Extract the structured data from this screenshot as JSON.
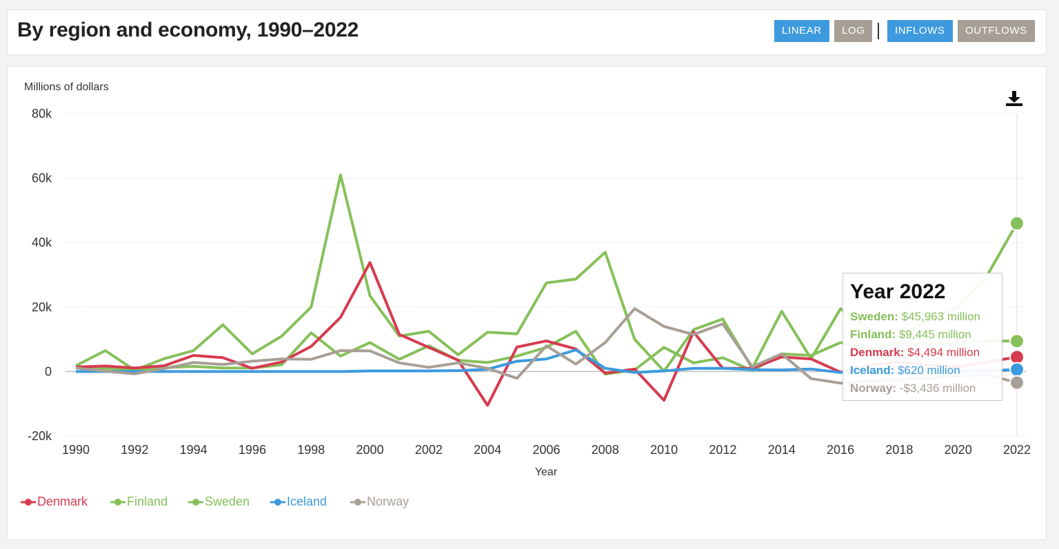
{
  "header": {
    "title": "By region and economy, 1990–2022",
    "buttons": {
      "linear": "LINEAR",
      "log": "LOG",
      "inflows": "INFLOWS",
      "outflows": "OUTFLOWS"
    }
  },
  "colors": {
    "denmark": "#d63b4f",
    "finland": "#86c05a",
    "sweden": "#86c05a",
    "iceland": "#3d9ade",
    "norway": "#a79f96"
  },
  "chart_data": {
    "type": "line",
    "ylabel": "Millions of dollars",
    "xlabel": "Year",
    "ylim": [
      -20000,
      80000
    ],
    "y_ticks": [
      -20000,
      0,
      20000,
      40000,
      60000,
      80000
    ],
    "y_tick_labels": [
      "-20k",
      "0",
      "20k",
      "40k",
      "60k",
      "80k"
    ],
    "x_ticks": [
      1990,
      1992,
      1994,
      1996,
      1998,
      2000,
      2002,
      2004,
      2006,
      2008,
      2010,
      2012,
      2014,
      2016,
      2018,
      2020,
      2022
    ],
    "x_tick_labels": [
      "1990",
      "1992",
      "1994",
      "1996",
      "1998",
      "2000",
      "2002",
      "2004",
      "2006",
      "2008",
      "2010",
      "2012",
      "2014",
      "2016",
      "2018",
      "2020",
      "2022"
    ],
    "grid": true,
    "legend_position": "bottom-left",
    "x": [
      1990,
      1991,
      1992,
      1993,
      1994,
      1995,
      1996,
      1997,
      1998,
      1999,
      2000,
      2001,
      2002,
      2003,
      2004,
      2005,
      2006,
      2007,
      2008,
      2009,
      2010,
      2011,
      2012,
      2013,
      2014,
      2015,
      2016,
      2017,
      2018,
      2019,
      2020,
      2021,
      2022
    ],
    "series": [
      {
        "name": "Sweden",
        "color": "#86c05a",
        "values": [
          1800,
          6500,
          400,
          4000,
          6500,
          14500,
          5500,
          11000,
          20000,
          61000,
          23500,
          11000,
          12500,
          5200,
          12200,
          11700,
          27500,
          28700,
          37000,
          10000,
          100,
          13000,
          16300,
          1000,
          18700,
          4000,
          19500,
          13000,
          11000,
          16000,
          20000,
          30000,
          45963
        ]
      },
      {
        "name": "Finland",
        "color": "#86c05a",
        "values": [
          1400,
          1000,
          300,
          1200,
          1600,
          1100,
          1100,
          2100,
          12000,
          4800,
          9000,
          3800,
          8000,
          3500,
          2800,
          4800,
          7500,
          12500,
          -800,
          500,
          7500,
          2700,
          4300,
          300,
          5500,
          5000,
          9000,
          7000,
          9000,
          8500,
          9000,
          9500,
          9445
        ]
      },
      {
        "name": "Denmark",
        "color": "#d63b4f",
        "values": [
          1400,
          1700,
          1100,
          1800,
          5000,
          4300,
          1000,
          3000,
          7800,
          16800,
          33800,
          11500,
          7500,
          3500,
          -10500,
          7600,
          9500,
          7000,
          -500,
          800,
          -8900,
          12300,
          1000,
          1000,
          4500,
          3900,
          -200,
          2000,
          3000,
          2000,
          1500,
          3000,
          4494
        ]
      },
      {
        "name": "Iceland",
        "color": "#3d9ade",
        "values": [
          0,
          0,
          0,
          0,
          0,
          0,
          0,
          0,
          0,
          0,
          200,
          200,
          200,
          300,
          700,
          3200,
          3900,
          6700,
          1000,
          -300,
          200,
          1000,
          1000,
          600,
          500,
          800,
          -300,
          0,
          -500,
          -200,
          100,
          300,
          620
        ]
      },
      {
        "name": "Norway",
        "color": "#a79f96",
        "values": [
          1100,
          100,
          -700,
          900,
          2800,
          2200,
          3200,
          3900,
          3800,
          6500,
          6400,
          2700,
          1300,
          2700,
          1000,
          -2100,
          8000,
          2300,
          9000,
          19500,
          14000,
          11500,
          14800,
          1500,
          5500,
          -2200,
          -3600,
          -3000,
          -2500,
          -2000,
          -1500,
          -1000,
          -3436
        ]
      }
    ],
    "tooltip": {
      "title": "Year 2022",
      "rows": [
        {
          "name": "Sweden:",
          "value": "$45,963 million",
          "color": "#86c05a"
        },
        {
          "name": "Finland:",
          "value": "$9,445 million",
          "color": "#86c05a"
        },
        {
          "name": "Denmark:",
          "value": "$4,494 million",
          "color": "#d63b4f"
        },
        {
          "name": "Iceland:",
          "value": "$620 million",
          "color": "#3d9ade"
        },
        {
          "name": "Norway:",
          "value": "-$3,436 million",
          "color": "#a79f96"
        }
      ]
    },
    "legend": [
      {
        "name": "Denmark",
        "color": "#d63b4f"
      },
      {
        "name": "Finland",
        "color": "#86c05a"
      },
      {
        "name": "Sweden",
        "color": "#86c05a"
      },
      {
        "name": "Iceland",
        "color": "#3d9ade"
      },
      {
        "name": "Norway",
        "color": "#a79f96"
      }
    ]
  }
}
